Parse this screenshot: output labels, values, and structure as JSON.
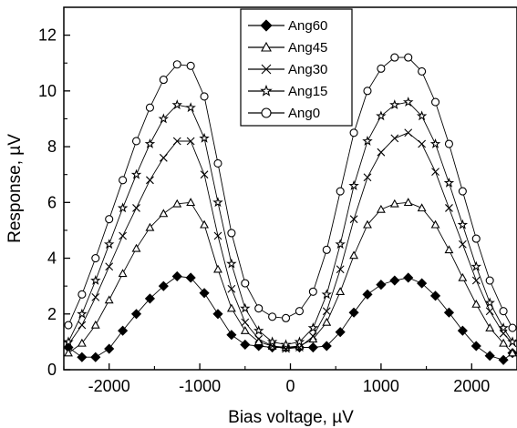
{
  "chart_data": {
    "type": "scatter",
    "title": "",
    "xlabel": "Bias voltage, µV",
    "ylabel": "Response, µV",
    "xlim": [
      -2500,
      2500
    ],
    "ylim": [
      0,
      13
    ],
    "xticks": [
      -2000,
      -1000,
      0,
      1000,
      2000
    ],
    "yticks": [
      0,
      2,
      4,
      6,
      8,
      10,
      12
    ],
    "grid": false,
    "legend_position": "top-center",
    "series": [
      {
        "name": "Ang60",
        "marker": "filled-diamond",
        "x": [
          -2450,
          -2300,
          -2150,
          -2000,
          -1850,
          -1700,
          -1550,
          -1400,
          -1250,
          -1100,
          -950,
          -800,
          -650,
          -500,
          -350,
          -200,
          -50,
          100,
          250,
          400,
          550,
          700,
          850,
          1000,
          1150,
          1300,
          1450,
          1600,
          1750,
          1900,
          2050,
          2200,
          2350,
          2450
        ],
        "y": [
          0.8,
          0.45,
          0.45,
          0.75,
          1.4,
          2.0,
          2.55,
          3.0,
          3.35,
          3.3,
          2.75,
          2.0,
          1.25,
          0.9,
          0.85,
          0.8,
          0.8,
          0.8,
          0.8,
          0.85,
          1.35,
          2.05,
          2.7,
          3.05,
          3.2,
          3.3,
          3.1,
          2.65,
          2.05,
          1.4,
          0.85,
          0.5,
          0.35,
          0.6
        ]
      },
      {
        "name": "Ang45",
        "marker": "open-triangle",
        "x": [
          -2450,
          -2300,
          -2150,
          -2000,
          -1850,
          -1700,
          -1550,
          -1400,
          -1250,
          -1100,
          -950,
          -800,
          -650,
          -500,
          -350,
          -200,
          -50,
          100,
          250,
          400,
          550,
          700,
          850,
          1000,
          1150,
          1300,
          1450,
          1600,
          1750,
          1900,
          2050,
          2200,
          2350,
          2450
        ],
        "y": [
          0.6,
          0.95,
          1.6,
          2.5,
          3.45,
          4.35,
          5.1,
          5.6,
          5.95,
          6.0,
          5.2,
          3.6,
          2.2,
          1.4,
          1.0,
          0.85,
          0.8,
          0.85,
          1.1,
          1.7,
          2.8,
          4.1,
          5.2,
          5.75,
          5.95,
          6.0,
          5.8,
          5.2,
          4.3,
          3.3,
          2.35,
          1.5,
          0.95,
          0.6
        ]
      },
      {
        "name": "Ang30",
        "marker": "x",
        "x": [
          -2450,
          -2300,
          -2150,
          -2000,
          -1850,
          -1700,
          -1550,
          -1400,
          -1250,
          -1100,
          -950,
          -800,
          -650,
          -500,
          -350,
          -200,
          -50,
          100,
          250,
          400,
          550,
          700,
          850,
          1000,
          1150,
          1300,
          1450,
          1600,
          1750,
          1900,
          2050,
          2200,
          2350,
          2450
        ],
        "y": [
          0.9,
          1.6,
          2.6,
          3.7,
          4.8,
          5.8,
          6.8,
          7.6,
          8.2,
          8.2,
          7.0,
          4.8,
          2.9,
          1.7,
          1.1,
          0.85,
          0.75,
          0.8,
          1.2,
          2.1,
          3.6,
          5.4,
          6.9,
          7.8,
          8.3,
          8.5,
          8.1,
          7.1,
          5.8,
          4.5,
          3.2,
          2.1,
          1.3,
          0.95
        ]
      },
      {
        "name": "Ang15",
        "marker": "open-star",
        "x": [
          -2450,
          -2300,
          -2150,
          -2000,
          -1850,
          -1700,
          -1550,
          -1400,
          -1250,
          -1100,
          -950,
          -800,
          -650,
          -500,
          -350,
          -200,
          -50,
          100,
          250,
          400,
          550,
          700,
          850,
          1000,
          1150,
          1300,
          1450,
          1600,
          1750,
          1900,
          2050,
          2200,
          2350,
          2450
        ],
        "y": [
          1.0,
          2.0,
          3.2,
          4.5,
          5.8,
          7.0,
          8.1,
          9.0,
          9.5,
          9.4,
          8.3,
          6.0,
          3.8,
          2.2,
          1.4,
          1.0,
          0.9,
          1.0,
          1.5,
          2.7,
          4.5,
          6.6,
          8.2,
          9.1,
          9.5,
          9.6,
          9.1,
          8.1,
          6.7,
          5.2,
          3.7,
          2.4,
          1.5,
          1.0
        ]
      },
      {
        "name": "Ang0",
        "marker": "open-circle",
        "x": [
          -2450,
          -2300,
          -2150,
          -2000,
          -1850,
          -1700,
          -1550,
          -1400,
          -1250,
          -1100,
          -950,
          -800,
          -650,
          -500,
          -350,
          -200,
          -50,
          100,
          250,
          400,
          550,
          700,
          850,
          1000,
          1150,
          1300,
          1450,
          1600,
          1750,
          1900,
          2050,
          2200,
          2350,
          2450
        ],
        "y": [
          1.6,
          2.7,
          4.0,
          5.4,
          6.8,
          8.2,
          9.4,
          10.4,
          10.95,
          10.9,
          9.8,
          7.4,
          4.9,
          3.1,
          2.2,
          1.9,
          1.85,
          2.1,
          2.8,
          4.3,
          6.4,
          8.5,
          10.0,
          10.8,
          11.2,
          11.2,
          10.7,
          9.6,
          8.1,
          6.4,
          4.7,
          3.2,
          2.1,
          1.5
        ]
      }
    ]
  }
}
